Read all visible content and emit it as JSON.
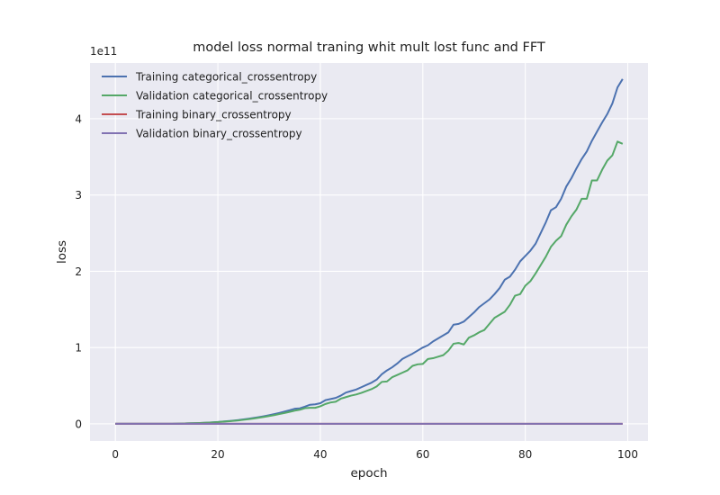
{
  "chart_data": {
    "type": "line",
    "title": "model loss normal traning whit mult lost func and FFT",
    "xlabel": "epoch",
    "ylabel": "loss",
    "y_offset_label": "1e11",
    "xlim": [
      -4.95,
      103.95
    ],
    "ylim": [
      -22500000000.0,
      473000000000.0
    ],
    "xticks": [
      0,
      20,
      40,
      60,
      80,
      100
    ],
    "yticks": [
      0,
      100000000000.0,
      200000000000.0,
      300000000000.0,
      400000000000.0
    ],
    "ytick_labels": [
      "0",
      "1",
      "2",
      "3",
      "4"
    ],
    "grid": true,
    "legend_position": "upper left",
    "series": [
      {
        "name": "Training categorical_crossentropy",
        "color": "#4c72b0",
        "x": [
          0,
          1,
          2,
          3,
          4,
          5,
          6,
          7,
          8,
          9,
          10,
          11,
          12,
          13,
          14,
          15,
          16,
          17,
          18,
          19,
          20,
          21,
          22,
          23,
          24,
          25,
          26,
          27,
          28,
          29,
          30,
          31,
          32,
          33,
          34,
          35,
          36,
          37,
          38,
          39,
          40,
          41,
          42,
          43,
          44,
          45,
          46,
          47,
          48,
          49,
          50,
          51,
          52,
          53,
          54,
          55,
          56,
          57,
          58,
          59,
          60,
          61,
          62,
          63,
          64,
          65,
          66,
          67,
          68,
          69,
          70,
          71,
          72,
          73,
          74,
          75,
          76,
          77,
          78,
          79,
          80,
          81,
          82,
          83,
          84,
          85,
          86,
          87,
          88,
          89,
          90,
          91,
          92,
          93,
          94,
          95,
          96,
          97,
          98,
          99
        ],
        "values": [
          0,
          0,
          0,
          0,
          0,
          0,
          0,
          0,
          0,
          0,
          0,
          100000000.0,
          200000000.0,
          400000000.0,
          600000000.0,
          800000000.0,
          1000000000.0,
          1300000000.0,
          1600000000.0,
          2000000000.0,
          2500000000.0,
          3000000000.0,
          3600000000.0,
          4200000000.0,
          4900000000.0,
          5800000000.0,
          6700000000.0,
          7700000000.0,
          8800000000.0,
          10000000000.0,
          11300000000.0,
          12700000000.0,
          14300000000.0,
          16000000000.0,
          17800000000.0,
          19800000000.0,
          20300000000.0,
          22500000000.0,
          25000000000.0,
          25600000000.0,
          27000000000.0,
          31000000000.0,
          32500000000.0,
          34000000000.0,
          37000000000.0,
          41000000000.0,
          43000000000.0,
          45000000000.0,
          48000000000.0,
          51000000000.0,
          54000000000.0,
          58000000000.0,
          65000000000.0,
          70000000000.0,
          74000000000.0,
          79000000000.0,
          85000000000.0,
          88500000000.0,
          92000000000.0,
          96000000000.0,
          100000000000.0,
          103000000000.0,
          108000000000.0,
          112000000000.0,
          116000000000.0,
          120000000000.0,
          130000000000.0,
          131000000000.0,
          134000000000.0,
          140000000000.0,
          146000000000.0,
          153000000000.0,
          158000000000.0,
          163000000000.0,
          170000000000.0,
          178000000000.0,
          189000000000.0,
          193000000000.0,
          202000000000.0,
          213000000000.0,
          220000000000.0,
          227000000000.0,
          236000000000.0,
          250000000000.0,
          264000000000.0,
          280000000000.0,
          284000000000.0,
          295000000000.0,
          311000000000.0,
          322000000000.0,
          335000000000.0,
          347000000000.0,
          357000000000.0,
          371000000000.0,
          383000000000.0,
          395000000000.0,
          406000000000.0,
          420000000000.0,
          441000000000.0,
          452000000000.0
        ]
      },
      {
        "name": "Validation categorical_crossentropy",
        "color": "#55a868",
        "x": [
          0,
          1,
          2,
          3,
          4,
          5,
          6,
          7,
          8,
          9,
          10,
          11,
          12,
          13,
          14,
          15,
          16,
          17,
          18,
          19,
          20,
          21,
          22,
          23,
          24,
          25,
          26,
          27,
          28,
          29,
          30,
          31,
          32,
          33,
          34,
          35,
          36,
          37,
          38,
          39,
          40,
          41,
          42,
          43,
          44,
          45,
          46,
          47,
          48,
          49,
          50,
          51,
          52,
          53,
          54,
          55,
          56,
          57,
          58,
          59,
          60,
          61,
          62,
          63,
          64,
          65,
          66,
          67,
          68,
          69,
          70,
          71,
          72,
          73,
          74,
          75,
          76,
          77,
          78,
          79,
          80,
          81,
          82,
          83,
          84,
          85,
          86,
          87,
          88,
          89,
          90,
          91,
          92,
          93,
          94,
          95,
          96,
          97,
          98,
          99
        ],
        "values": [
          0,
          0,
          0,
          0,
          0,
          0,
          0,
          0,
          0,
          0,
          0,
          100000000.0,
          200000000.0,
          400000000.0,
          600000000.0,
          800000000.0,
          1000000000.0,
          1200000000.0,
          1500000000.0,
          1900000000.0,
          2300000000.0,
          2800000000.0,
          3300000000.0,
          3900000000.0,
          4500000000.0,
          5300000000.0,
          6100000000.0,
          7000000000.0,
          8000000000.0,
          9100000000.0,
          10200000000.0,
          11400000000.0,
          12800000000.0,
          14200000000.0,
          15700000000.0,
          17300000000.0,
          18500000000.0,
          20500000000.0,
          21000000000.0,
          21000000000.0,
          23000000000.0,
          26000000000.0,
          28000000000.0,
          29000000000.0,
          33000000000.0,
          35000000000.0,
          37000000000.0,
          38500000000.0,
          40500000000.0,
          43000000000.0,
          45500000000.0,
          49000000000.0,
          55000000000.0,
          55500000000.0,
          61000000000.0,
          64000000000.0,
          67000000000.0,
          70000000000.0,
          76000000000.0,
          78000000000.0,
          78500000000.0,
          85000000000.0,
          86000000000.0,
          88000000000.0,
          90000000000.0,
          96000000000.0,
          105000000000.0,
          106000000000.0,
          104000000000.0,
          113000000000.0,
          116000000000.0,
          120000000000.0,
          123000000000.0,
          131000000000.0,
          139000000000.0,
          143000000000.0,
          147000000000.0,
          156000000000.0,
          168000000000.0,
          170000000000.0,
          181000000000.0,
          187000000000.0,
          197000000000.0,
          208000000000.0,
          219000000000.0,
          232000000000.0,
          240000000000.0,
          246000000000.0,
          261000000000.0,
          272000000000.0,
          281000000000.0,
          295000000000.0,
          295000000000.0,
          319000000000.0,
          319000000000.0,
          333000000000.0,
          345000000000.0,
          352000000000.0,
          370000000000.0,
          367000000000.0
        ]
      },
      {
        "name": "Training binary_crossentropy",
        "color": "#c44e52",
        "x": [
          0,
          99
        ],
        "values": [
          0,
          0
        ]
      },
      {
        "name": "Validation binary_crossentropy",
        "color": "#8172b2",
        "x": [
          0,
          99
        ],
        "values": [
          0,
          0
        ]
      }
    ]
  }
}
